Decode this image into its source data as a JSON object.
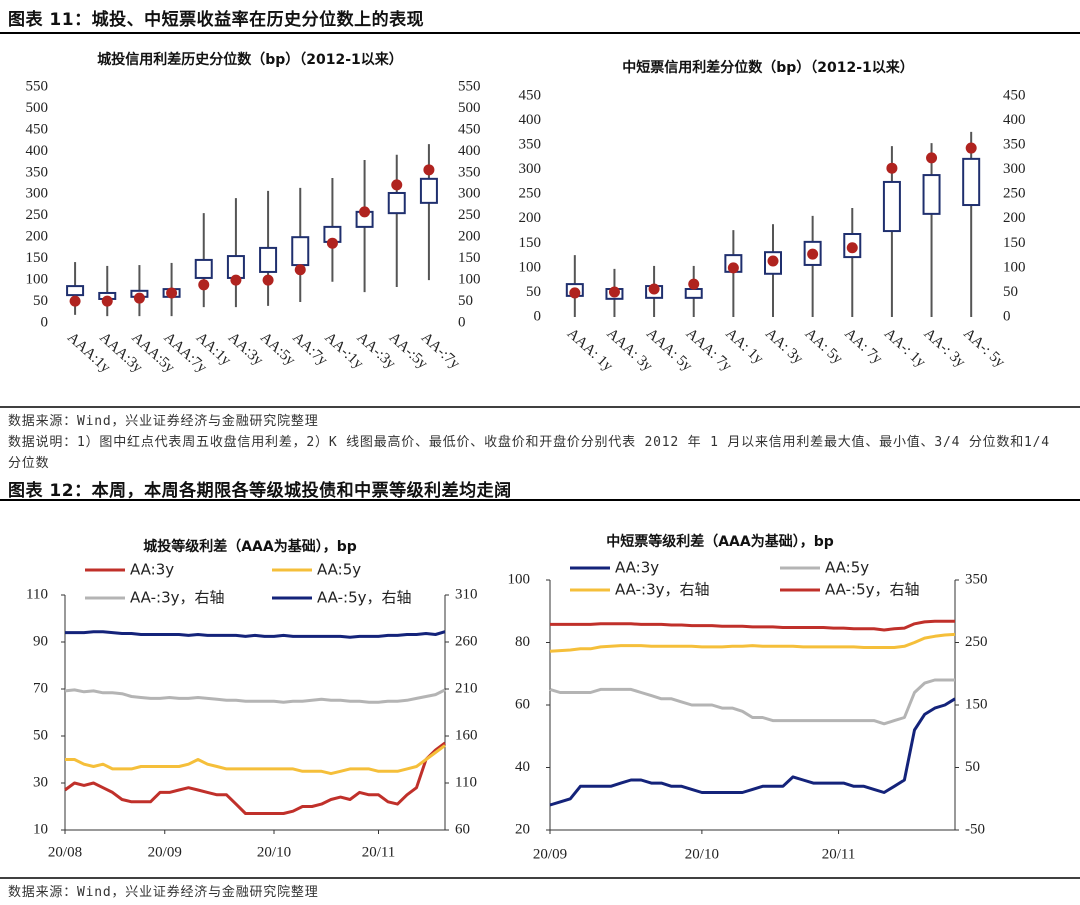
{
  "figure11": {
    "title": "图表 11：城投、中短票收益率在历史分位数上的表现"
  },
  "notes": {
    "source": "数据来源：Wind，兴业证券经济与金融研究院整理",
    "explanation": "数据说明：1）图中红点代表周五收盘信用利差，2）K 线图最高价、最低价、收盘价和开盘价分别代表 2012 年 1 月以来信用利差最大值、最小值、3/4 分位数和1/4 分位数"
  },
  "figure12": {
    "title": "图表 12：本周，本周各期限各等级城投债和中票等级利差均走阔"
  },
  "footer": {
    "source": "数据来源：Wind，兴业证券经济与金融研究院整理"
  },
  "chart_data": [
    {
      "type": "box",
      "title": "城投信用利差历史分位数（bp）（2012-1以来）",
      "categories": [
        "AAA:1y",
        "AAA:3y",
        "AAA:5y",
        "AAA:7y",
        "AA:1y",
        "AA:3y",
        "AA:5y",
        "AA:7y",
        "AA-:1y",
        "AA-:3y",
        "AA-:5y",
        "AA-:7y"
      ],
      "high": [
        142,
        133,
        135,
        140,
        256,
        291,
        308,
        315,
        338,
        380,
        392,
        417
      ],
      "low": [
        19,
        16,
        16,
        16,
        37,
        37,
        40,
        49,
        96,
        72,
        84,
        100
      ],
      "q3": [
        86,
        70,
        75,
        79,
        147,
        156,
        175,
        200,
        224,
        259,
        303,
        336
      ],
      "q1": [
        65,
        56,
        61,
        61,
        105,
        105,
        119,
        135,
        189,
        224,
        256,
        280
      ],
      "dots": [
        51,
        51,
        58,
        70,
        89,
        100,
        100,
        124,
        186,
        259,
        322,
        357
      ],
      "box_color": "#1f2f6e",
      "dot_color": "#b0231f",
      "whisker_color": "#555555",
      "ylim": [
        0,
        550
      ],
      "yticks": [
        0,
        50,
        100,
        150,
        200,
        250,
        300,
        350,
        400,
        450,
        500,
        550
      ],
      "y2lim": [
        0,
        550
      ],
      "y2ticks": [
        0,
        50,
        100,
        150,
        200,
        250,
        300,
        350,
        400,
        450,
        500,
        550
      ]
    },
    {
      "type": "box",
      "title": "中短票信用利差分位数（bp）（2012-1以来）",
      "categories": [
        "AAA: 1y",
        "AAA: 3y",
        "AAA: 5y",
        "AAA: 7y",
        "AA: 1y",
        "AA: 3y",
        "AA: 5y",
        "AA: 7y",
        "AA-: 1y",
        "AA-: 3y",
        "AA-: 5y"
      ],
      "high": [
        126,
        98,
        104,
        104,
        177,
        189,
        206,
        222,
        348,
        354,
        377
      ],
      "low": [
        0,
        0,
        0,
        0,
        0,
        0,
        0,
        0,
        0,
        0,
        0
      ],
      "q3": [
        67,
        57,
        63,
        57,
        126,
        132,
        153,
        169,
        275,
        289,
        322
      ],
      "q1": [
        43,
        37,
        39,
        39,
        92,
        88,
        106,
        122,
        175,
        210,
        228
      ],
      "dots": [
        49,
        51,
        57,
        67,
        100,
        114,
        128,
        141,
        303,
        324,
        344
      ],
      "box_color": "#1f2f6e",
      "dot_color": "#b0231f",
      "whisker_color": "#555555",
      "ylim": [
        0,
        450
      ],
      "yticks": [
        0,
        50,
        100,
        150,
        200,
        250,
        300,
        350,
        400,
        450
      ],
      "y2lim": [
        0,
        450
      ],
      "y2ticks": [
        0,
        50,
        100,
        150,
        200,
        250,
        300,
        350,
        400,
        450
      ]
    },
    {
      "type": "line",
      "title": "城投等级利差（AAA为基础），bp",
      "x": [
        0,
        2,
        4,
        6,
        8,
        10,
        12,
        14,
        16,
        18,
        20,
        22,
        24,
        26,
        28,
        30,
        32,
        34,
        36,
        38,
        40,
        42,
        44,
        46,
        48,
        50,
        52,
        54,
        56,
        58,
        60,
        62,
        64,
        66,
        68,
        70,
        72,
        74,
        76,
        78,
        80
      ],
      "xlim": [
        0,
        80
      ],
      "xticks": [
        {
          "value": 0,
          "label": "20/08"
        },
        {
          "value": 21,
          "label": "20/09"
        },
        {
          "value": 44,
          "label": "20/10"
        },
        {
          "value": 66,
          "label": "20/11"
        }
      ],
      "ylim": [
        10,
        110
      ],
      "yticks": [
        10,
        30,
        50,
        70,
        90,
        110
      ],
      "y2lim": [
        60,
        310
      ],
      "y2ticks": [
        60,
        110,
        160,
        210,
        260,
        310
      ],
      "series": [
        {
          "name": "AA:3y",
          "color": "#c0302a",
          "values": [
            27,
            30,
            29,
            30,
            28,
            26,
            23,
            22,
            22,
            22,
            26,
            26,
            27,
            28,
            27,
            26,
            25,
            25,
            21,
            17,
            17,
            17,
            17,
            17,
            18,
            20,
            20,
            21,
            23,
            24,
            23,
            26,
            25,
            25,
            22,
            21,
            25,
            28,
            40,
            44,
            47
          ]
        },
        {
          "name": "AA:5y",
          "color": "#f5bf3a",
          "values": [
            40,
            40,
            38,
            37,
            38,
            36,
            36,
            36,
            37,
            37,
            37,
            37,
            37,
            38,
            40,
            38,
            37,
            36,
            36,
            36,
            36,
            36,
            36,
            36,
            36,
            35,
            35,
            35,
            34,
            35,
            36,
            36,
            36,
            35,
            35,
            35,
            36,
            37,
            40,
            43,
            46
          ]
        },
        {
          "name": "AA-:3y，右轴",
          "color": "#b4b4b4",
          "axis": "y2",
          "values": [
            208,
            209,
            207,
            208,
            206,
            206,
            205,
            202,
            201,
            200,
            200,
            201,
            200,
            200,
            201,
            200,
            199,
            198,
            198,
            197,
            197,
            197,
            197,
            196,
            197,
            197,
            198,
            199,
            198,
            198,
            197,
            197,
            196,
            196,
            197,
            197,
            198,
            200,
            202,
            204,
            209
          ]
        },
        {
          "name": "AA-:5y，右轴",
          "color": "#14237a",
          "axis": "y2",
          "values": [
            270,
            270,
            270,
            271,
            271,
            270,
            269,
            269,
            268,
            268,
            268,
            268,
            268,
            267,
            268,
            267,
            267,
            267,
            267,
            266,
            267,
            266,
            266,
            267,
            266,
            266,
            266,
            266,
            266,
            266,
            265,
            266,
            266,
            266,
            267,
            267,
            268,
            268,
            269,
            268,
            271
          ]
        }
      ]
    },
    {
      "type": "line",
      "title": "中短票等级利差（AAA为基础），bp",
      "x": [
        0,
        2,
        4,
        6,
        8,
        10,
        12,
        14,
        16,
        18,
        20,
        22,
        24,
        26,
        28,
        30,
        32,
        34,
        36,
        38,
        40,
        42,
        44,
        46,
        48,
        50,
        52,
        54,
        56,
        58,
        60,
        62,
        64,
        66,
        68,
        70,
        72,
        74,
        76,
        78,
        80
      ],
      "xlim": [
        0,
        80
      ],
      "xticks": [
        {
          "value": 0,
          "label": "20/09"
        },
        {
          "value": 30,
          "label": "20/10"
        },
        {
          "value": 57,
          "label": "20/11"
        }
      ],
      "ylim": [
        20,
        100
      ],
      "yticks": [
        20,
        40,
        60,
        80,
        100
      ],
      "y2lim": [
        -50,
        350
      ],
      "y2ticks": [
        -50,
        50,
        150,
        250,
        350
      ],
      "series": [
        {
          "name": "AA:3y",
          "color": "#14237a",
          "values": [
            28,
            29,
            30,
            34,
            34,
            34,
            34,
            35,
            36,
            36,
            35,
            35,
            34,
            34,
            33,
            32,
            32,
            32,
            32,
            32,
            33,
            34,
            34,
            34,
            37,
            36,
            35,
            35,
            35,
            35,
            34,
            34,
            33,
            32,
            34,
            36,
            52,
            57,
            59,
            60,
            62
          ]
        },
        {
          "name": "AA:5y",
          "color": "#b4b4b4",
          "values": [
            65,
            64,
            64,
            64,
            64,
            65,
            65,
            65,
            65,
            64,
            63,
            62,
            62,
            61,
            60,
            60,
            60,
            59,
            59,
            58,
            56,
            56,
            55,
            55,
            55,
            55,
            55,
            55,
            55,
            55,
            55,
            55,
            55,
            54,
            55,
            56,
            64,
            67,
            68,
            68,
            68
          ]
        },
        {
          "name": "AA-:3y，右轴",
          "color": "#f5bf3a",
          "axis": "y2",
          "values": [
            236,
            237,
            238,
            240,
            240,
            243,
            244,
            245,
            245,
            245,
            244,
            244,
            244,
            244,
            244,
            243,
            243,
            243,
            244,
            244,
            245,
            244,
            244,
            244,
            244,
            243,
            243,
            243,
            243,
            243,
            243,
            242,
            242,
            242,
            242,
            244,
            250,
            257,
            260,
            262,
            263
          ]
        },
        {
          "name": "AA-:5y，右轴",
          "color": "#c0302a",
          "axis": "y2",
          "values": [
            279,
            279,
            279,
            279,
            279,
            280,
            280,
            280,
            280,
            279,
            279,
            279,
            278,
            278,
            277,
            277,
            277,
            276,
            276,
            276,
            275,
            275,
            275,
            274,
            274,
            274,
            274,
            274,
            273,
            273,
            272,
            272,
            272,
            270,
            272,
            273,
            280,
            283,
            284,
            284,
            284
          ]
        }
      ]
    }
  ]
}
